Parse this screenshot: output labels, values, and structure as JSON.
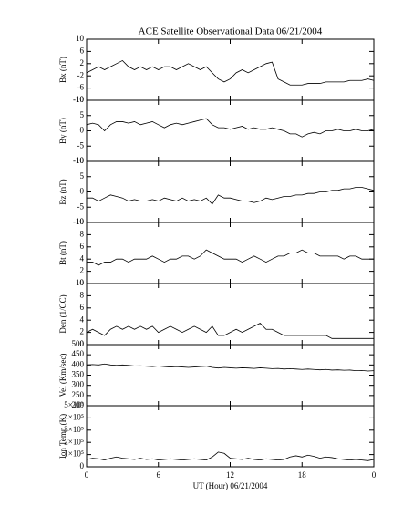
{
  "chart_data": [
    {
      "type": "line",
      "title": "ACE Satellite Observational Data  06/21/2004",
      "ylabel": "Bx (nT)",
      "x": [
        0,
        0.5,
        1,
        1.5,
        2,
        2.5,
        3,
        3.5,
        4,
        4.5,
        5,
        5.5,
        6,
        6.5,
        7,
        7.5,
        8,
        8.5,
        9,
        9.5,
        10,
        10.5,
        11,
        11.5,
        12,
        12.5,
        13,
        13.5,
        14,
        14.5,
        15,
        15.5,
        16,
        16.5,
        17,
        17.5,
        18,
        18.5,
        19,
        19.5,
        20,
        20.5,
        21,
        21.5,
        22,
        22.5,
        23,
        23.5,
        24
      ],
      "values": [
        -1,
        0,
        1,
        0,
        1,
        2,
        3,
        1,
        0,
        1,
        0,
        1,
        0,
        1,
        1,
        0,
        1,
        2,
        1,
        0,
        1,
        -1,
        -3,
        -4,
        -3,
        -1,
        0,
        -1,
        0,
        1,
        2,
        2.5,
        -3,
        -4,
        -5,
        -5,
        -5,
        -4.5,
        -4.5,
        -4.5,
        -4,
        -4,
        -4,
        -4,
        -3.5,
        -3.5,
        -3.5,
        -3,
        -3.5
      ],
      "color": "#000000",
      "xlim": [
        0,
        24
      ],
      "xticks": [
        0,
        6,
        12,
        18,
        24
      ],
      "ylim": [
        -10,
        10
      ],
      "yticks": [
        -10,
        -6,
        -2,
        2,
        6,
        10
      ]
    },
    {
      "type": "line",
      "ylabel": "By (nT)",
      "x": [
        0,
        0.5,
        1,
        1.5,
        2,
        2.5,
        3,
        3.5,
        4,
        4.5,
        5,
        5.5,
        6,
        6.5,
        7,
        7.5,
        8,
        8.5,
        9,
        9.5,
        10,
        10.5,
        11,
        11.5,
        12,
        12.5,
        13,
        13.5,
        14,
        14.5,
        15,
        15.5,
        16,
        16.5,
        17,
        17.5,
        18,
        18.5,
        19,
        19.5,
        20,
        20.5,
        21,
        21.5,
        22,
        22.5,
        23,
        23.5,
        24
      ],
      "values": [
        2,
        2.5,
        2,
        0,
        2,
        3,
        3,
        2.5,
        3,
        2,
        2.5,
        3,
        2,
        1,
        2,
        2.5,
        2,
        2.5,
        3,
        3.5,
        4,
        2,
        1,
        1,
        0.5,
        1,
        1.5,
        0.5,
        1,
        0.5,
        0.5,
        1,
        0.5,
        0,
        -1,
        -1,
        -2,
        -1,
        -0.5,
        -1,
        0,
        0,
        0.5,
        0,
        0,
        0.5,
        0,
        0,
        0.5
      ],
      "color": "#000000",
      "xlim": [
        0,
        24
      ],
      "xticks": [
        0,
        6,
        12,
        18,
        24
      ],
      "ylim": [
        -10,
        10
      ],
      "yticks": [
        -10,
        -5,
        0,
        5,
        10
      ]
    },
    {
      "type": "line",
      "ylabel": "Bz (nT)",
      "x": [
        0,
        0.5,
        1,
        1.5,
        2,
        2.5,
        3,
        3.5,
        4,
        4.5,
        5,
        5.5,
        6,
        6.5,
        7,
        7.5,
        8,
        8.5,
        9,
        9.5,
        10,
        10.5,
        11,
        11.5,
        12,
        12.5,
        13,
        13.5,
        14,
        14.5,
        15,
        15.5,
        16,
        16.5,
        17,
        17.5,
        18,
        18.5,
        19,
        19.5,
        20,
        20.5,
        21,
        21.5,
        22,
        22.5,
        23,
        23.5,
        24
      ],
      "values": [
        -2,
        -2,
        -3,
        -2,
        -1,
        -1.5,
        -2,
        -3,
        -2.5,
        -3,
        -3,
        -2.5,
        -3,
        -2,
        -2.5,
        -3,
        -2,
        -3,
        -2.5,
        -3,
        -2,
        -4,
        -1,
        -2,
        -2,
        -2.5,
        -3,
        -3,
        -3.5,
        -3,
        -2,
        -2.5,
        -2,
        -1.5,
        -1.5,
        -1,
        -1,
        -0.5,
        -0.5,
        0,
        0,
        0.5,
        0.5,
        1,
        1,
        1.5,
        1.5,
        1,
        0.5
      ],
      "color": "#000000",
      "xlim": [
        0,
        24
      ],
      "xticks": [
        0,
        6,
        12,
        18,
        24
      ],
      "ylim": [
        -10,
        10
      ],
      "yticks": [
        -10,
        -5,
        0,
        5,
        10
      ]
    },
    {
      "type": "line",
      "ylabel": "Bt (nT)",
      "x": [
        0,
        0.5,
        1,
        1.5,
        2,
        2.5,
        3,
        3.5,
        4,
        4.5,
        5,
        5.5,
        6,
        6.5,
        7,
        7.5,
        8,
        8.5,
        9,
        9.5,
        10,
        10.5,
        11,
        11.5,
        12,
        12.5,
        13,
        13.5,
        14,
        14.5,
        15,
        15.5,
        16,
        16.5,
        17,
        17.5,
        18,
        18.5,
        19,
        19.5,
        20,
        20.5,
        21,
        21.5,
        22,
        22.5,
        23,
        23.5,
        24
      ],
      "values": [
        3.5,
        3.5,
        3,
        3.5,
        3.5,
        4,
        4,
        3.5,
        4,
        4,
        4,
        4.5,
        4,
        3.5,
        4,
        4,
        4.5,
        4.5,
        4,
        4.5,
        5.5,
        5,
        4.5,
        4,
        4,
        4,
        3.5,
        4,
        4.5,
        4,
        3.5,
        4,
        4.5,
        4.5,
        5,
        5,
        5.5,
        5,
        5,
        4.5,
        4.5,
        4.5,
        4.5,
        4,
        4.5,
        4.5,
        4,
        4,
        4
      ],
      "color": "#000000",
      "xlim": [
        0,
        24
      ],
      "xticks": [
        0,
        6,
        12,
        18,
        24
      ],
      "ylim": [
        0,
        10
      ],
      "yticks": [
        0,
        2,
        4,
        6,
        8,
        10
      ]
    },
    {
      "type": "line",
      "ylabel": "Den (1/CC)",
      "x": [
        0,
        0.5,
        1,
        1.5,
        2,
        2.5,
        3,
        3.5,
        4,
        4.5,
        5,
        5.5,
        6,
        6.5,
        7,
        7.5,
        8,
        8.5,
        9,
        9.5,
        10,
        10.5,
        11,
        11.5,
        12,
        12.5,
        13,
        13.5,
        14,
        14.5,
        15,
        15.5,
        16,
        16.5,
        17,
        17.5,
        18,
        18.5,
        19,
        19.5,
        20,
        20.5,
        21,
        21.5,
        22,
        22.5,
        23,
        23.5,
        24
      ],
      "values": [
        2,
        2.5,
        2,
        1.5,
        2.5,
        3,
        2.5,
        3,
        2.5,
        3,
        2.5,
        3,
        2,
        2.5,
        3,
        2.5,
        2,
        2.5,
        3,
        2.5,
        2,
        3,
        1.5,
        1.5,
        2,
        2.5,
        2,
        2.5,
        3,
        3.5,
        2.5,
        2.5,
        2,
        1.5,
        1.5,
        1.5,
        1.5,
        1.5,
        1.5,
        1.5,
        1.5,
        1,
        1,
        1,
        1,
        1,
        1,
        1,
        1
      ],
      "color": "#000000",
      "xlim": [
        0,
        24
      ],
      "xticks": [
        0,
        6,
        12,
        18,
        24
      ],
      "ylim": [
        0,
        10
      ],
      "yticks": [
        0,
        2,
        4,
        6,
        8,
        10
      ]
    },
    {
      "type": "line",
      "ylabel": "Vel (Km/sec)",
      "x": [
        0,
        0.5,
        1,
        1.5,
        2,
        2.5,
        3,
        3.5,
        4,
        4.5,
        5,
        5.5,
        6,
        6.5,
        7,
        7.5,
        8,
        8.5,
        9,
        9.5,
        10,
        10.5,
        11,
        11.5,
        12,
        12.5,
        13,
        13.5,
        14,
        14.5,
        15,
        15.5,
        16,
        16.5,
        17,
        17.5,
        18,
        18.5,
        19,
        19.5,
        20,
        20.5,
        21,
        21.5,
        22,
        22.5,
        23,
        23.5,
        24
      ],
      "values": [
        400,
        402,
        400,
        405,
        400,
        398,
        400,
        398,
        395,
        396,
        394,
        392,
        395,
        392,
        390,
        392,
        390,
        388,
        390,
        392,
        394,
        388,
        385,
        388,
        386,
        384,
        386,
        385,
        383,
        386,
        384,
        382,
        383,
        380,
        382,
        380,
        378,
        380,
        378,
        376,
        378,
        375,
        376,
        374,
        375,
        372,
        373,
        370,
        372
      ],
      "color": "#000000",
      "xlim": [
        0,
        24
      ],
      "xticks": [
        0,
        6,
        12,
        18,
        24
      ],
      "ylim": [
        200,
        500
      ],
      "yticks": [
        200,
        250,
        300,
        350,
        400,
        450,
        500
      ]
    },
    {
      "type": "line",
      "ylabel": "Ion Temp (K)",
      "xlabel": "UT (Hour)  06/21/2004",
      "x": [
        0,
        0.5,
        1,
        1.5,
        2,
        2.5,
        3,
        3.5,
        4,
        4.5,
        5,
        5.5,
        6,
        6.5,
        7,
        7.5,
        8,
        8.5,
        9,
        9.5,
        10,
        10.5,
        11,
        11.5,
        12,
        12.5,
        13,
        13.5,
        14,
        14.5,
        15,
        15.5,
        16,
        16.5,
        17,
        17.5,
        18,
        18.5,
        19,
        19.5,
        20,
        20.5,
        21,
        21.5,
        22,
        22.5,
        23,
        23.5,
        24
      ],
      "values": [
        60000,
        70000,
        65000,
        55000,
        70000,
        80000,
        70000,
        65000,
        60000,
        70000,
        60000,
        65000,
        55000,
        60000,
        65000,
        60000,
        55000,
        60000,
        65000,
        60000,
        55000,
        80000,
        120000,
        110000,
        70000,
        65000,
        60000,
        70000,
        60000,
        55000,
        65000,
        60000,
        55000,
        60000,
        80000,
        90000,
        80000,
        95000,
        85000,
        70000,
        80000,
        75000,
        65000,
        60000,
        55000,
        60000,
        55000,
        50000,
        60000
      ],
      "color": "#000000",
      "xlim": [
        0,
        24
      ],
      "xticks": [
        0,
        6,
        12,
        18,
        {
          "value": 24,
          "label": "0"
        }
      ],
      "ylim": [
        0,
        500000
      ],
      "yticks": [
        0,
        {
          "value": 100000,
          "label": "1×10⁵"
        },
        {
          "value": 200000,
          "label": "2×10⁵"
        },
        {
          "value": 300000,
          "label": "3×10⁵"
        },
        {
          "value": 400000,
          "label": "4×10⁵"
        },
        {
          "value": 500000,
          "label": "5×10⁵"
        }
      ]
    }
  ]
}
